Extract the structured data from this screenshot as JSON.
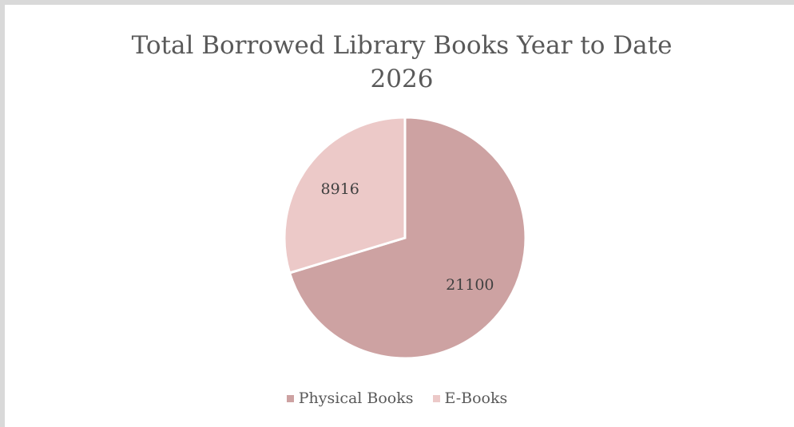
{
  "chart_data": {
    "type": "pie",
    "title": "Total Borrowed Library Books Year to Date",
    "subtitle": "2026",
    "categories": [
      "Physical Books",
      "E-Books"
    ],
    "values": [
      21100,
      8916
    ],
    "colors": [
      "#cda2a2",
      "#ecc9c8"
    ],
    "legend_position": "bottom",
    "data_labels": true
  }
}
